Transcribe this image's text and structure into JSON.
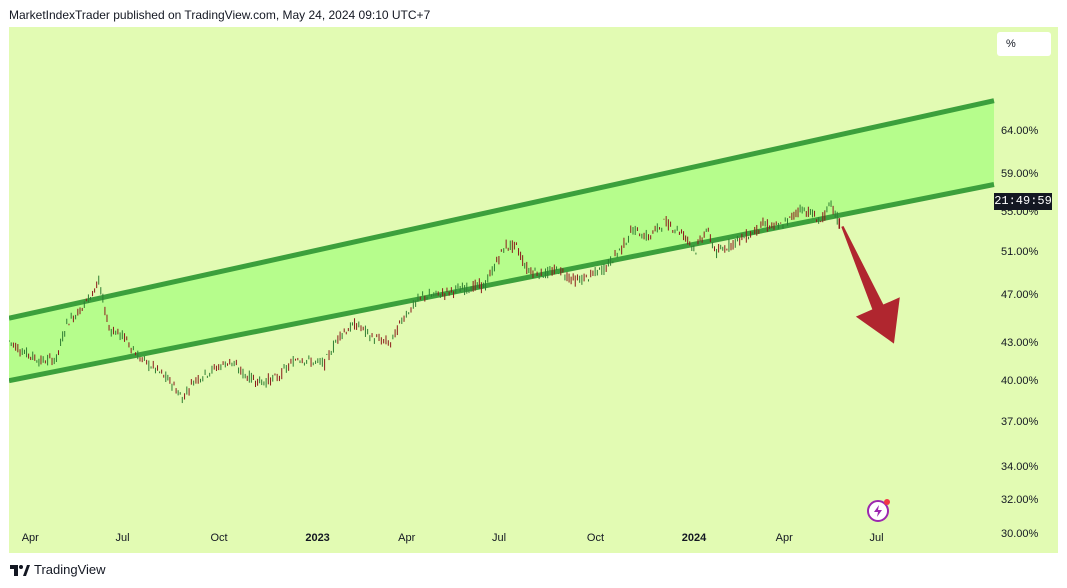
{
  "header": {
    "text": "MarketIndexTrader published on TradingView.com, May 24, 2024 09:10 UTC+7"
  },
  "scale_button": {
    "label": "%"
  },
  "countdown": {
    "text": "21:49:59"
  },
  "footer": {
    "brand": "TradingView"
  },
  "colors": {
    "background": "#e2fbb3",
    "channel_fill": "#b6fd8c",
    "channel_line": "#3ca03c",
    "arrow": "#b0262f",
    "candle_up": "#2e7d32",
    "candle_down": "#8b1a1a"
  },
  "icons": [
    "trading-view-logo-icon",
    "spark-icon"
  ],
  "chart_data": {
    "type": "line",
    "title": "",
    "xlabel": "",
    "ylabel": "",
    "y_scale": "log",
    "ylim": [
      29,
      78
    ],
    "y_ticks": [
      "64.00%",
      "59.00%",
      "55.00%",
      "51.00%",
      "47.00%",
      "43.00%",
      "40.00%",
      "37.00%",
      "34.00%",
      "32.00%",
      "30.00%"
    ],
    "x_ticks": [
      {
        "label": "Apr",
        "date": "2022-04-01",
        "bold": false
      },
      {
        "label": "Jul",
        "date": "2022-07-01",
        "bold": false
      },
      {
        "label": "Oct",
        "date": "2022-10-01",
        "bold": false
      },
      {
        "label": "2023",
        "date": "2023-01-01",
        "bold": true
      },
      {
        "label": "Apr",
        "date": "2023-04-01",
        "bold": false
      },
      {
        "label": "Jul",
        "date": "2023-07-01",
        "bold": false
      },
      {
        "label": "Oct",
        "date": "2023-10-01",
        "bold": false
      },
      {
        "label": "2024",
        "date": "2024-01-01",
        "bold": true
      },
      {
        "label": "Apr",
        "date": "2024-04-01",
        "bold": false
      },
      {
        "label": "Jul",
        "date": "2024-07-01",
        "bold": false
      }
    ],
    "xlim": [
      "2022-03-10",
      "2024-10-20"
    ],
    "series": [
      {
        "values": [
          [
            "2022-03-10",
            43.2
          ],
          [
            "2022-03-25",
            42.3
          ],
          [
            "2022-04-10",
            41.6
          ],
          [
            "2022-04-25",
            41.8
          ],
          [
            "2022-05-05",
            44.7
          ],
          [
            "2022-05-20",
            46.0
          ],
          [
            "2022-06-05",
            48.2
          ],
          [
            "2022-06-15",
            44.3
          ],
          [
            "2022-06-30",
            43.5
          ],
          [
            "2022-07-15",
            41.8
          ],
          [
            "2022-07-30",
            41.0
          ],
          [
            "2022-08-15",
            39.9
          ],
          [
            "2022-08-25",
            38.8
          ],
          [
            "2022-09-05",
            40.1
          ],
          [
            "2022-09-25",
            41.0
          ],
          [
            "2022-10-10",
            41.6
          ],
          [
            "2022-10-25",
            40.5
          ],
          [
            "2022-11-10",
            40.0
          ],
          [
            "2022-11-25",
            40.3
          ],
          [
            "2022-12-15",
            41.9
          ],
          [
            "2022-12-30",
            41.5
          ],
          [
            "2023-01-10",
            41.4
          ],
          [
            "2023-01-25",
            43.8
          ],
          [
            "2023-02-10",
            44.6
          ],
          [
            "2023-02-25",
            43.5
          ],
          [
            "2023-03-15",
            43.0
          ],
          [
            "2023-03-28",
            45.3
          ],
          [
            "2023-04-15",
            47.0
          ],
          [
            "2023-04-28",
            47.1
          ],
          [
            "2023-05-15",
            47.5
          ],
          [
            "2023-05-30",
            47.8
          ],
          [
            "2023-06-15",
            48.0
          ],
          [
            "2023-06-28",
            50.6
          ],
          [
            "2023-07-05",
            51.7
          ],
          [
            "2023-07-15",
            51.6
          ],
          [
            "2023-07-25",
            49.5
          ],
          [
            "2023-08-10",
            49.0
          ],
          [
            "2023-08-25",
            49.4
          ],
          [
            "2023-09-10",
            48.4
          ],
          [
            "2023-09-25",
            48.8
          ],
          [
            "2023-10-10",
            49.7
          ],
          [
            "2023-10-25",
            51.5
          ],
          [
            "2023-11-05",
            53.3
          ],
          [
            "2023-11-20",
            52.5
          ],
          [
            "2023-12-05",
            54.0
          ],
          [
            "2023-12-20",
            53.2
          ],
          [
            "2024-01-05",
            51.3
          ],
          [
            "2024-01-15",
            53.3
          ],
          [
            "2024-01-25",
            51.0
          ],
          [
            "2024-02-10",
            52.0
          ],
          [
            "2024-02-25",
            52.7
          ],
          [
            "2024-03-10",
            53.8
          ],
          [
            "2024-03-25",
            53.5
          ],
          [
            "2024-04-05",
            54.3
          ],
          [
            "2024-04-15",
            55.5
          ],
          [
            "2024-04-25",
            55.0
          ],
          [
            "2024-05-05",
            54.1
          ],
          [
            "2024-05-15",
            55.8
          ],
          [
            "2024-05-23",
            53.9
          ]
        ]
      }
    ],
    "annotations": [
      {
        "type": "parallel-channel",
        "lower": [
          [
            "2022-03-10",
            40.1
          ],
          [
            "2024-10-20",
            58.0
          ]
        ],
        "upper": [
          [
            "2022-03-10",
            45.1
          ],
          [
            "2024-10-20",
            67.9
          ]
        ]
      },
      {
        "type": "arrow",
        "direction": "down",
        "from": [
          "2024-05-26",
          53.6
        ],
        "to": [
          "2024-07-15",
          43.0
        ]
      }
    ],
    "grid": false,
    "legend": "none"
  }
}
